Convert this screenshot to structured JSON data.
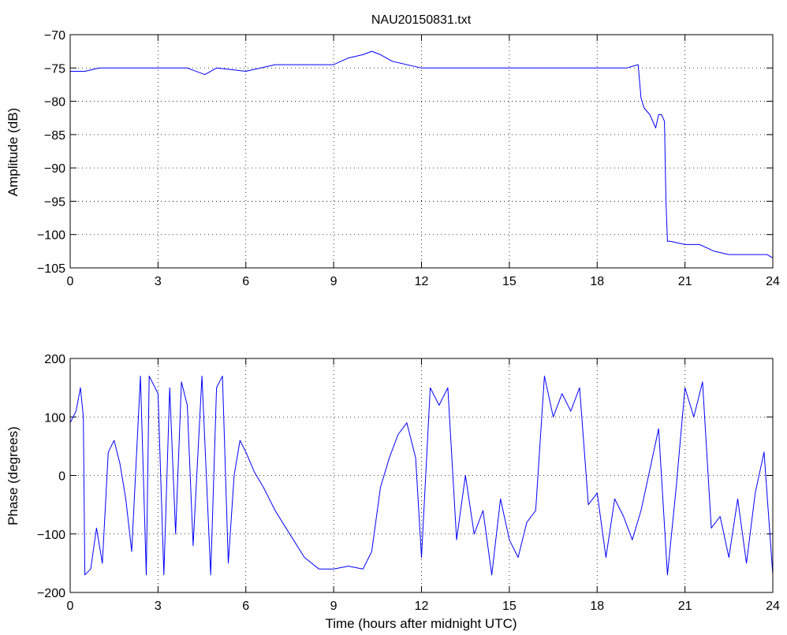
{
  "figure": {
    "title": "NAU20150831.txt"
  },
  "colors": {
    "series": "#0000ff",
    "axes": "#000000",
    "background": "#ffffff"
  },
  "chart_data": [
    {
      "id": "amp",
      "type": "line",
      "title": "NAU20150831.txt",
      "xlabel": "",
      "ylabel": "Amplitude (dB)",
      "xlim": [
        0,
        24
      ],
      "ylim": [
        -105,
        -70
      ],
      "xticks": [
        0,
        3,
        6,
        9,
        12,
        15,
        18,
        21,
        24
      ],
      "yticks": [
        -105,
        -100,
        -95,
        -90,
        -85,
        -80,
        -75,
        -70
      ],
      "xtick_labels": [
        "0",
        "3",
        "6",
        "9",
        "12",
        "15",
        "18",
        "21",
        "24"
      ],
      "ytick_labels": [
        "−105",
        "−100",
        "−95",
        "−90",
        "−85",
        "−80",
        "−75",
        "−70"
      ],
      "grid": true,
      "series": [
        {
          "color": "#0000ff",
          "x": [
            0,
            0.5,
            1,
            2,
            3,
            4,
            4.6,
            5,
            6,
            7,
            8,
            9,
            9.5,
            10,
            10.3,
            10.6,
            11,
            12,
            13,
            14,
            15,
            16,
            17,
            18,
            19,
            19.4,
            19.5,
            19.6,
            19.8,
            20,
            20.1,
            20.2,
            20.3,
            20.35,
            20.4,
            20.5,
            21,
            21.5,
            22,
            22.5,
            23,
            23.5,
            23.8,
            24
          ],
          "y": [
            -75.5,
            -75.5,
            -75,
            -75,
            -75,
            -75,
            -76,
            -75,
            -75.5,
            -74.5,
            -74.5,
            -74.5,
            -73.5,
            -73,
            -72.5,
            -73,
            -74,
            -75,
            -75,
            -75,
            -75,
            -75,
            -75,
            -75,
            -75,
            -74.5,
            -79.5,
            -81,
            -82,
            -84,
            -82,
            -82,
            -83,
            -95,
            -101,
            -101,
            -101.5,
            -101.5,
            -102.5,
            -103,
            -103,
            -103,
            -103,
            -103.5
          ]
        }
      ]
    },
    {
      "id": "phase",
      "type": "line",
      "title": "",
      "xlabel": "Time (hours after midnight UTC)",
      "ylabel": "Phase (degrees)",
      "xlim": [
        0,
        24
      ],
      "ylim": [
        -200,
        200
      ],
      "xticks": [
        0,
        3,
        6,
        9,
        12,
        15,
        18,
        21,
        24
      ],
      "yticks": [
        -200,
        -100,
        0,
        100,
        200
      ],
      "xtick_labels": [
        "0",
        "3",
        "6",
        "9",
        "12",
        "15",
        "18",
        "21",
        "24"
      ],
      "ytick_labels": [
        "−200",
        "−100",
        "0",
        "100",
        "200"
      ],
      "grid": true,
      "series": [
        {
          "color": "#0000ff",
          "x": [
            0,
            0.2,
            0.35,
            0.45,
            0.5,
            0.7,
            0.9,
            1.1,
            1.3,
            1.5,
            1.7,
            1.9,
            2.1,
            2.4,
            2.6,
            2.7,
            3.0,
            3.2,
            3.4,
            3.6,
            3.8,
            4.0,
            4.2,
            4.5,
            4.8,
            5.0,
            5.2,
            5.4,
            5.6,
            5.8,
            6.0,
            6.3,
            6.6,
            7.0,
            7.5,
            8.0,
            8.5,
            9.0,
            9.5,
            10.0,
            10.3,
            10.6,
            10.9,
            11.2,
            11.5,
            11.8,
            12.0,
            12.3,
            12.6,
            12.9,
            13.2,
            13.5,
            13.8,
            14.1,
            14.4,
            14.7,
            15.0,
            15.3,
            15.6,
            15.9,
            16.2,
            16.5,
            16.8,
            17.1,
            17.4,
            17.7,
            18.0,
            18.3,
            18.6,
            18.9,
            19.2,
            19.5,
            19.8,
            20.1,
            20.4,
            20.7,
            21.0,
            21.3,
            21.6,
            21.9,
            22.2,
            22.5,
            22.8,
            23.1,
            23.4,
            23.7,
            24.0
          ],
          "y": [
            90,
            110,
            150,
            100,
            -170,
            -160,
            -90,
            -150,
            40,
            60,
            20,
            -40,
            -130,
            170,
            -170,
            170,
            140,
            -170,
            150,
            -100,
            160,
            120,
            -120,
            170,
            -170,
            150,
            170,
            -150,
            0,
            60,
            40,
            5,
            -20,
            -60,
            -100,
            -140,
            -160,
            -160,
            -155,
            -160,
            -130,
            -20,
            30,
            70,
            90,
            30,
            -140,
            150,
            120,
            150,
            -110,
            0,
            -100,
            -60,
            -170,
            -40,
            -110,
            -140,
            -80,
            -60,
            170,
            100,
            140,
            110,
            150,
            -50,
            -30,
            -140,
            -40,
            -70,
            -110,
            -60,
            10,
            80,
            -170,
            -20,
            150,
            100,
            160,
            -90,
            -70,
            -140,
            -40,
            -150,
            -30,
            40,
            -170
          ]
        }
      ]
    }
  ]
}
